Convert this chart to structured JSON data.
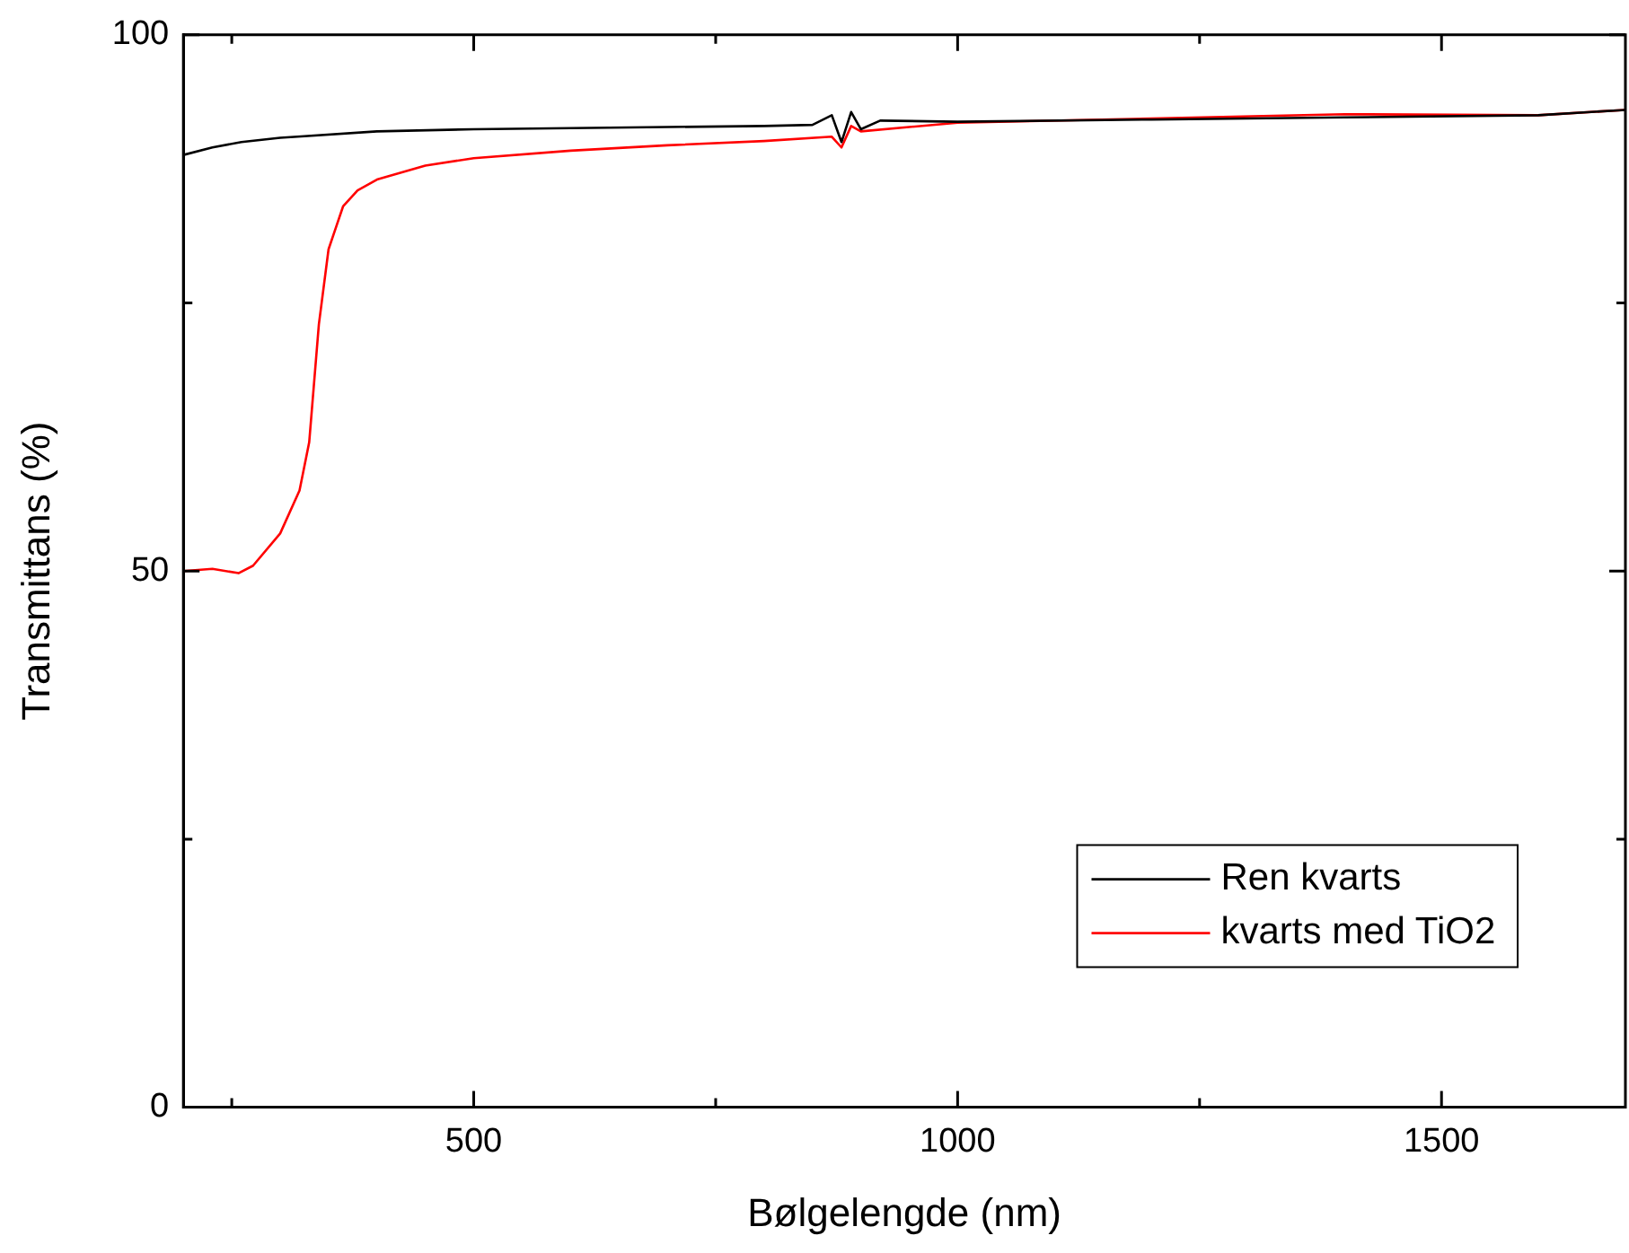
{
  "chart_data": {
    "type": "line",
    "xlabel": "Bølgelengde (nm)",
    "ylabel": "Transmittans (%)",
    "xlim": [
      200,
      1690
    ],
    "xticks": [
      {
        "value": 250,
        "label": null
      },
      500,
      {
        "value": 750,
        "label": null
      },
      1000,
      {
        "value": 1250,
        "label": null
      },
      1500
    ],
    "ylim": [
      0,
      100
    ],
    "yticks": [
      0,
      {
        "value": 25,
        "label": null
      },
      50,
      {
        "value": 75,
        "label": null
      },
      100
    ],
    "grid": false,
    "legend": "bottom right",
    "marker": "none",
    "line_style": "solid",
    "series": [
      {
        "name": "Ren kvarts",
        "color": "#000000",
        "x": [
          200,
          230,
          260,
          300,
          318,
          400,
          500,
          600,
          700,
          800,
          850,
          870,
          880,
          890,
          900,
          920,
          1000,
          1200,
          1400,
          1600,
          1690
        ],
        "values": [
          88.8,
          89.5,
          90,
          90.4,
          90.5,
          91,
          91.2,
          91.3,
          91.4,
          91.5,
          91.6,
          92.5,
          90,
          92.8,
          91.2,
          92,
          91.9,
          92.1,
          92.3,
          92.5,
          93
        ]
      },
      {
        "name": "kvarts med TiO2",
        "color": "#ff0000",
        "x": [
          200,
          230,
          257,
          272,
          300,
          320,
          330,
          340,
          350,
          365,
          380,
          400,
          450,
          500,
          600,
          700,
          800,
          870,
          880,
          890,
          900,
          1000,
          1200,
          1400,
          1600,
          1690
        ],
        "values": [
          50,
          50.2,
          49.8,
          50.5,
          53.5,
          57.5,
          62,
          73,
          80,
          84,
          85.5,
          86.5,
          87.8,
          88.5,
          89.2,
          89.7,
          90.1,
          90.5,
          89.5,
          91.5,
          91,
          91.8,
          92.2,
          92.6,
          92.5,
          93
        ]
      }
    ]
  }
}
